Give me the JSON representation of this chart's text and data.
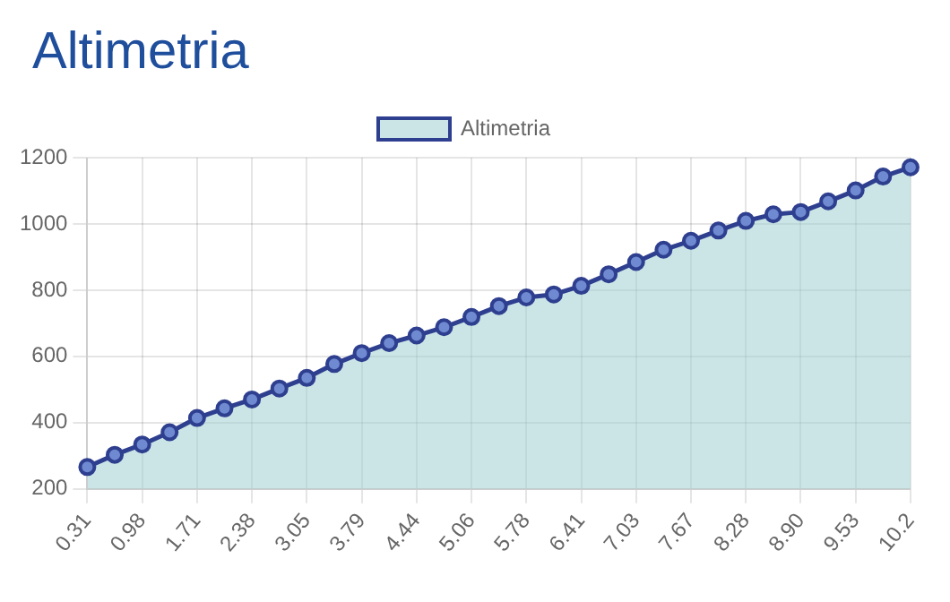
{
  "chart_data": {
    "type": "area",
    "title": "Altimetria",
    "categories": [
      "0.31",
      null,
      "0.98",
      null,
      "1.71",
      null,
      "2.38",
      null,
      "3.05",
      null,
      "3.79",
      null,
      "4.44",
      null,
      "5.06",
      null,
      "5.78",
      null,
      "6.41",
      null,
      "7.03",
      null,
      "7.67",
      null,
      "8.28",
      null,
      "8.90",
      null,
      "9.53",
      null,
      "10.2"
    ],
    "series": [
      {
        "name": "Altimetria",
        "color": "#2e3f8f",
        "values": [
          266,
          303,
          334,
          371,
          414,
          443,
          470,
          503,
          535,
          577,
          610,
          640,
          663,
          688,
          719,
          752,
          778,
          787,
          813,
          848,
          885,
          922,
          949,
          980,
          1009,
          1029,
          1036,
          1068,
          1101,
          1143,
          1171
        ]
      }
    ],
    "ylim": [
      200,
      1200
    ],
    "yticks": [
      200,
      400,
      600,
      800,
      1000,
      1200
    ],
    "grid": true,
    "legend": "top",
    "marker": "circle"
  }
}
